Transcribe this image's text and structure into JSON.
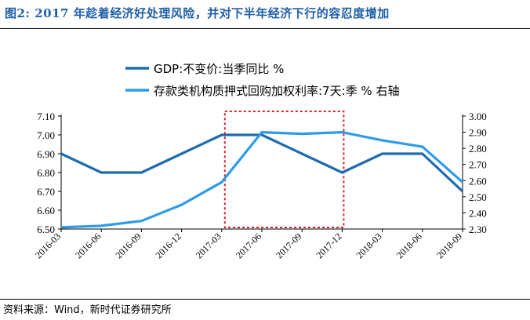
{
  "figure": {
    "label": "图2:",
    "title": "2017 年趁着经济好处理风险，并对下半年经济下行的容忍度增加",
    "source": "资料来源：Wind，新时代证券研究所"
  },
  "chart_data": {
    "type": "line",
    "categories": [
      "2016-03",
      "2016-06",
      "2016-09",
      "2016-12",
      "2017-03",
      "2017-06",
      "2017-09",
      "2017-12",
      "2018-03",
      "2018-06",
      "2018-09"
    ],
    "series": [
      {
        "name": "GDP:不变价:当季同比 %",
        "axis": "left",
        "color": "#1f6bb0",
        "values": [
          6.9,
          6.8,
          6.8,
          6.9,
          7.0,
          7.0,
          6.9,
          6.8,
          6.9,
          6.9,
          6.7
        ]
      },
      {
        "name": "存款类机构质押式回购加权利率:7天:季 % 右轴",
        "axis": "right",
        "color": "#2f9be8",
        "values": [
          2.31,
          2.32,
          2.35,
          2.45,
          2.59,
          2.9,
          2.89,
          2.9,
          2.85,
          2.81,
          2.59
        ]
      }
    ],
    "y_left": {
      "min": 6.5,
      "max": 7.1,
      "ticks": [
        "6.50",
        "6.60",
        "6.70",
        "6.80",
        "6.90",
        "7.00",
        "7.10"
      ]
    },
    "y_right": {
      "min": 2.3,
      "max": 3.0,
      "ticks": [
        "2.30",
        "2.40",
        "2.50",
        "2.60",
        "2.70",
        "2.80",
        "2.90",
        "3.00"
      ]
    },
    "legend_position": "top-center",
    "grid": false,
    "highlight_box": {
      "from_category": "2017-03",
      "to_category": "2017-12",
      "color": "#e02020"
    }
  }
}
